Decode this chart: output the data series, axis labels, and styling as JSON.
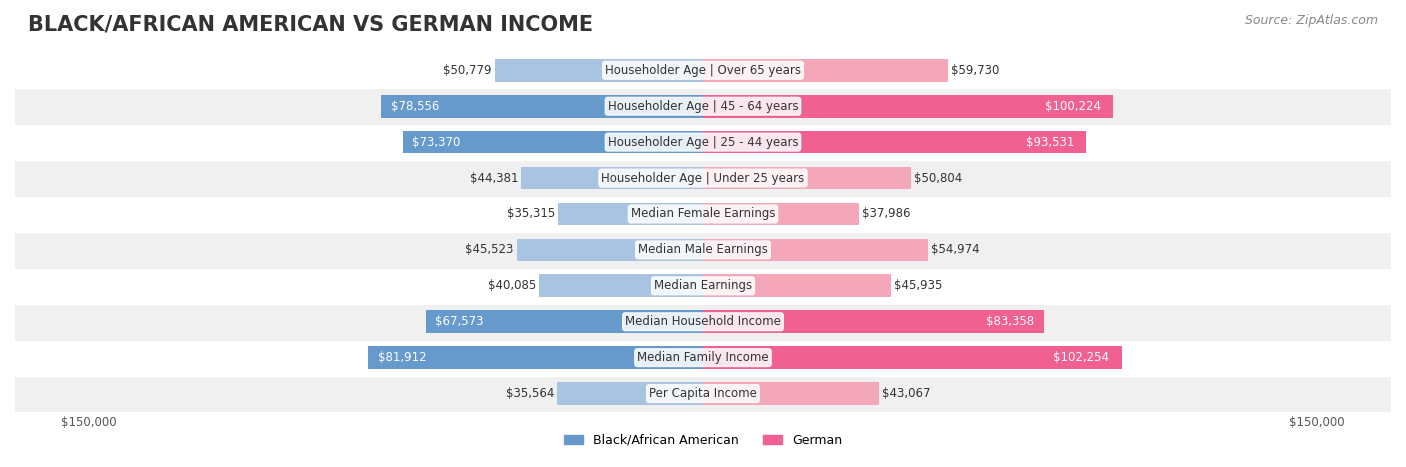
{
  "title": "BLACK/AFRICAN AMERICAN VS GERMAN INCOME",
  "source": "Source: ZipAtlas.com",
  "categories": [
    "Per Capita Income",
    "Median Family Income",
    "Median Household Income",
    "Median Earnings",
    "Median Male Earnings",
    "Median Female Earnings",
    "Householder Age | Under 25 years",
    "Householder Age | 25 - 44 years",
    "Householder Age | 45 - 64 years",
    "Householder Age | Over 65 years"
  ],
  "black_values": [
    35564,
    81912,
    67573,
    40085,
    45523,
    35315,
    44381,
    73370,
    78556,
    50779
  ],
  "german_values": [
    43067,
    102254,
    83358,
    45935,
    54974,
    37986,
    50804,
    93531,
    100224,
    59730
  ],
  "black_color_light": "#a8c4e0",
  "black_color_dark": "#6699cc",
  "german_color_light": "#f4a7b9",
  "german_color_dark": "#f06090",
  "label_color_dark": "#ffffff",
  "label_color_light": "#555555",
  "bar_height": 0.35,
  "max_val": 150000,
  "background_color": "#f5f5f5",
  "row_bg_color": "#f0f0f0",
  "row_alt_bg_color": "#ffffff",
  "title_fontsize": 15,
  "label_fontsize": 8.5,
  "category_fontsize": 8.5,
  "legend_fontsize": 9,
  "source_fontsize": 9
}
